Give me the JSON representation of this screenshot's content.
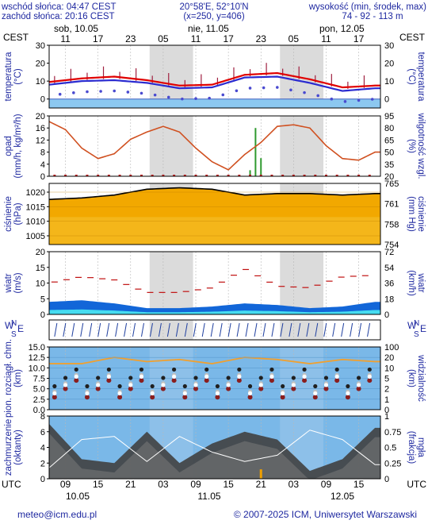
{
  "header": {
    "sunrise": "wschód słońca: 04:47 CEST",
    "sunset": "zachód słońca: 20:16 CEST",
    "coords": "20°58'E, 52°10'N",
    "grid": "(x=250, y=406)",
    "height_label": "wysokość (min, środek, max)",
    "height_values": "74 - 92 - 113 m"
  },
  "top_axis": {
    "tz_left": "CEST",
    "tz_right": "CEST",
    "days": [
      "sob, 10.05",
      "nie, 11.05",
      "pon, 12.05"
    ],
    "hours": [
      "11",
      "17",
      "23",
      "05",
      "11",
      "17",
      "23",
      "05",
      "11",
      "17"
    ]
  },
  "bottom_axis": {
    "tz_left": "UTC",
    "tz_right": "UTC",
    "hours": [
      "09",
      "15",
      "21",
      "03",
      "09",
      "15",
      "21",
      "03",
      "09",
      "15"
    ],
    "dates": [
      "10.05",
      "11.05",
      "12.05"
    ]
  },
  "footer": {
    "email": "meteo@icm.edu.pl",
    "copyright": "© 2007-2025 ICM, Uniwersytet Warszawski"
  },
  "colors": {
    "plot_bg": "#ffffff",
    "night_band": "#d2d2d2",
    "temp_line": "#e00000",
    "dew_line": "#2b2bd0",
    "pressure_fill": "#f2a800",
    "pressure_fill_light": "#fad24a",
    "humidity_line": "#d05020",
    "rain_bar": "#2f9a2f",
    "wind_fill": "#1266d8",
    "wind_fill_light": "#46dcf0",
    "gust_dash": "#c01010",
    "cloud_bg": "#7ab8e8",
    "visibility_line": "#f0a030",
    "label_blue": "#1e28a0"
  },
  "chart_data": [
    {
      "type": "line",
      "name": "temperature",
      "ylabel": "temperatura\n(°C)",
      "ylabel_right": "(°C)\ntemperatura",
      "ylim": [
        -5,
        30
      ],
      "yticks": [
        0,
        10,
        20,
        30
      ],
      "x_hours": [
        0,
        6,
        12,
        18,
        24,
        30,
        36,
        42,
        48,
        54,
        60
      ],
      "series": [
        {
          "values": [
            9.5,
            11.5,
            12.5,
            10.5,
            7.5,
            8.0,
            13.5,
            14.5,
            11.0,
            6.5,
            7.5
          ]
        },
        {
          "values": [
            8.0,
            10.0,
            10.5,
            9.0,
            6.0,
            6.5,
            12.0,
            12.5,
            9.0,
            4.5,
            6.0
          ]
        }
      ]
    },
    {
      "type": "line",
      "name": "precipitation",
      "ylabel": "opad\n(mm/h, kg/m²/h)",
      "ylabel_right": "(%)\nwilgotność wzgl.",
      "ylim": [
        0,
        20
      ],
      "yticks": [
        0,
        4,
        8,
        12,
        16,
        20
      ],
      "yticks_right": [
        20,
        35,
        50,
        65,
        80,
        95
      ],
      "x_hours": [
        0,
        3,
        6,
        9,
        12,
        15,
        18,
        21,
        24,
        27,
        30,
        33,
        36,
        39,
        42,
        45,
        48,
        51,
        54,
        57,
        60
      ],
      "series": [
        {
          "values": [
            88,
            78,
            55,
            42,
            48,
            66,
            75,
            82,
            75,
            55,
            38,
            28,
            47,
            62,
            82,
            84,
            80,
            58,
            42,
            40,
            50
          ]
        }
      ],
      "rain_hours": [
        37,
        38,
        39
      ],
      "rain_values": [
        2.0,
        16.0,
        6.0
      ]
    },
    {
      "type": "area",
      "name": "pressure",
      "ylabel": "ciśnienie\n(hPa)",
      "ylabel_right": "(mm Hg)\nciśnienie",
      "ylim": [
        1002,
        1023
      ],
      "yticks": [
        1005,
        1010,
        1015,
        1020
      ],
      "yticks_right": [
        754,
        758,
        761,
        765
      ],
      "x_hours": [
        0,
        6,
        12,
        18,
        24,
        30,
        36,
        42,
        48,
        54,
        60
      ],
      "series": [
        {
          "values": [
            1017.5,
            1018.0,
            1019.0,
            1021.0,
            1021.5,
            1021.0,
            1019.0,
            1019.5,
            1019.5,
            1019.0,
            1019.5
          ]
        }
      ]
    },
    {
      "type": "area",
      "name": "wind",
      "ylabel": "wiatr\n(m/s)",
      "ylabel_right": "(km/h)\nwiatr",
      "ylim": [
        0,
        20
      ],
      "yticks": [
        0,
        5,
        10,
        15,
        20
      ],
      "yticks_right": [
        0,
        18,
        36,
        54,
        72
      ],
      "x_hours": [
        0,
        6,
        12,
        18,
        24,
        30,
        36,
        42,
        48,
        54,
        60
      ],
      "series": [
        {
          "values": [
            4.0,
            4.5,
            3.5,
            2.0,
            2.0,
            2.5,
            3.5,
            3.0,
            2.0,
            2.5,
            4.0
          ]
        }
      ],
      "gusts": [
        10.0,
        12.0,
        11.0,
        7.0,
        7.0,
        8.5,
        14.5,
        9.0,
        8.5,
        12.0,
        12.5
      ]
    },
    {
      "type": "scatter",
      "name": "visibility",
      "ylabel": "pion. rozciągł. chm.\n(km)",
      "ylabel_right": "(km)\nwidzialność",
      "ylim": [
        0,
        15
      ],
      "yticks": [
        0,
        2.5,
        5,
        7.5,
        10,
        12.5,
        15
      ],
      "ytick_labels": [
        "0.0",
        "2.5",
        "5.0",
        "7.5",
        "10.0",
        "12.5",
        "15.0"
      ],
      "yticks_right": [
        0,
        1,
        2,
        5,
        10,
        20,
        100
      ],
      "x_hours": [
        0,
        6,
        12,
        18,
        24,
        30,
        36,
        42,
        48,
        54,
        60
      ],
      "series": [
        {
          "values": [
            11.0,
            11.0,
            12.5,
            11.5,
            12.0,
            11.0,
            12.5,
            12.0,
            11.0,
            12.0,
            11.5
          ]
        }
      ]
    },
    {
      "type": "area",
      "name": "clouds",
      "ylabel": "zachmurzenie\n(oktanty)",
      "ylabel_right": "(frakcja)\nmgła",
      "ylim": [
        0,
        8
      ],
      "yticks": [
        0,
        2,
        4,
        6,
        8
      ],
      "yticks_right": [
        0,
        0.25,
        0.5,
        0.75,
        1
      ],
      "x_hours": [
        0,
        6,
        12,
        18,
        24,
        30,
        36,
        42,
        48,
        54,
        60
      ],
      "series": [
        {
          "values": [
            7.0,
            2.5,
            2.0,
            6.0,
            2.0,
            4.5,
            6.0,
            5.0,
            1.0,
            2.5,
            6.5
          ]
        }
      ]
    }
  ]
}
